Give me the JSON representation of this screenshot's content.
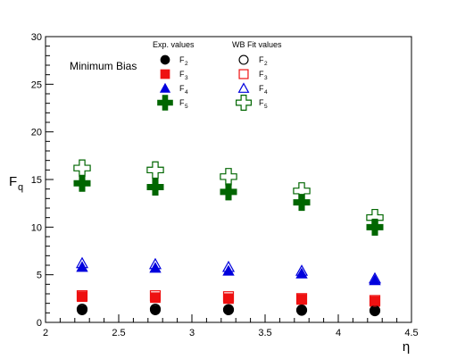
{
  "chart_data": {
    "type": "scatter",
    "title": "",
    "annotation": "Minimum Bias",
    "xlabel": "η",
    "ylabel_main": "F",
    "ylabel_sub": "q",
    "xlim": [
      2,
      4.5
    ],
    "ylim": [
      0,
      30
    ],
    "xticks": [
      2,
      2.5,
      3,
      3.5,
      4,
      4.5
    ],
    "xtick_labels": [
      "2",
      "2.5",
      "3",
      "3.5",
      "4",
      "4.5"
    ],
    "yticks": [
      0,
      5,
      10,
      15,
      20,
      25,
      30
    ],
    "ytick_labels": [
      "0",
      "5",
      "10",
      "15",
      "20",
      "25",
      "30"
    ],
    "grid": false,
    "legend": {
      "placement": "top",
      "groups": [
        {
          "heading": "Exp. values",
          "filled": true,
          "entries": [
            "F",
            "F",
            "F",
            "F"
          ],
          "subs": [
            "2",
            "3",
            "4",
            "5"
          ]
        },
        {
          "heading": "WB Fit values",
          "filled": false,
          "entries": [
            "F",
            "F",
            "F",
            "F"
          ],
          "subs": [
            "2",
            "3",
            "4",
            "5"
          ]
        }
      ]
    },
    "x": [
      2.25,
      2.75,
      3.25,
      3.75,
      4.25
    ],
    "series": [
      {
        "group": "exp",
        "marker": "circle",
        "color": "#000000",
        "filled": true,
        "values": [
          1.3,
          1.3,
          1.3,
          1.25,
          1.2
        ],
        "err": [
          0.1,
          0.1,
          0.1,
          0.1,
          0.1
        ]
      },
      {
        "group": "exp",
        "marker": "square",
        "color": "#ee1111",
        "filled": true,
        "values": [
          2.7,
          2.6,
          2.5,
          2.4,
          2.2
        ],
        "err": [
          0.3,
          0.3,
          0.3,
          0.3,
          0.3
        ]
      },
      {
        "group": "exp",
        "marker": "triangle",
        "color": "#0000dd",
        "filled": true,
        "values": [
          5.8,
          5.7,
          5.4,
          5.1,
          4.4
        ],
        "err": [
          0.3,
          0.3,
          0.3,
          0.3,
          0.3
        ]
      },
      {
        "group": "exp",
        "marker": "cross",
        "color": "#006600",
        "filled": true,
        "values": [
          14.6,
          14.2,
          13.7,
          12.6,
          10.0
        ],
        "err": [
          0.6,
          0.6,
          0.6,
          0.6,
          0.6
        ]
      },
      {
        "group": "fit",
        "marker": "circle",
        "color": "#000000",
        "filled": false,
        "values": [
          1.4,
          1.4,
          1.35,
          1.3,
          1.25
        ]
      },
      {
        "group": "fit",
        "marker": "square",
        "color": "#ee1111",
        "filled": false,
        "values": [
          2.8,
          2.8,
          2.7,
          2.5,
          2.3
        ]
      },
      {
        "group": "fit",
        "marker": "triangle",
        "color": "#0000dd",
        "filled": false,
        "values": [
          6.2,
          6.1,
          5.8,
          5.4,
          4.6
        ]
      },
      {
        "group": "fit",
        "marker": "cross",
        "color": "#006600",
        "filled": false,
        "values": [
          16.2,
          16.0,
          15.3,
          13.8,
          11.0
        ]
      }
    ]
  }
}
